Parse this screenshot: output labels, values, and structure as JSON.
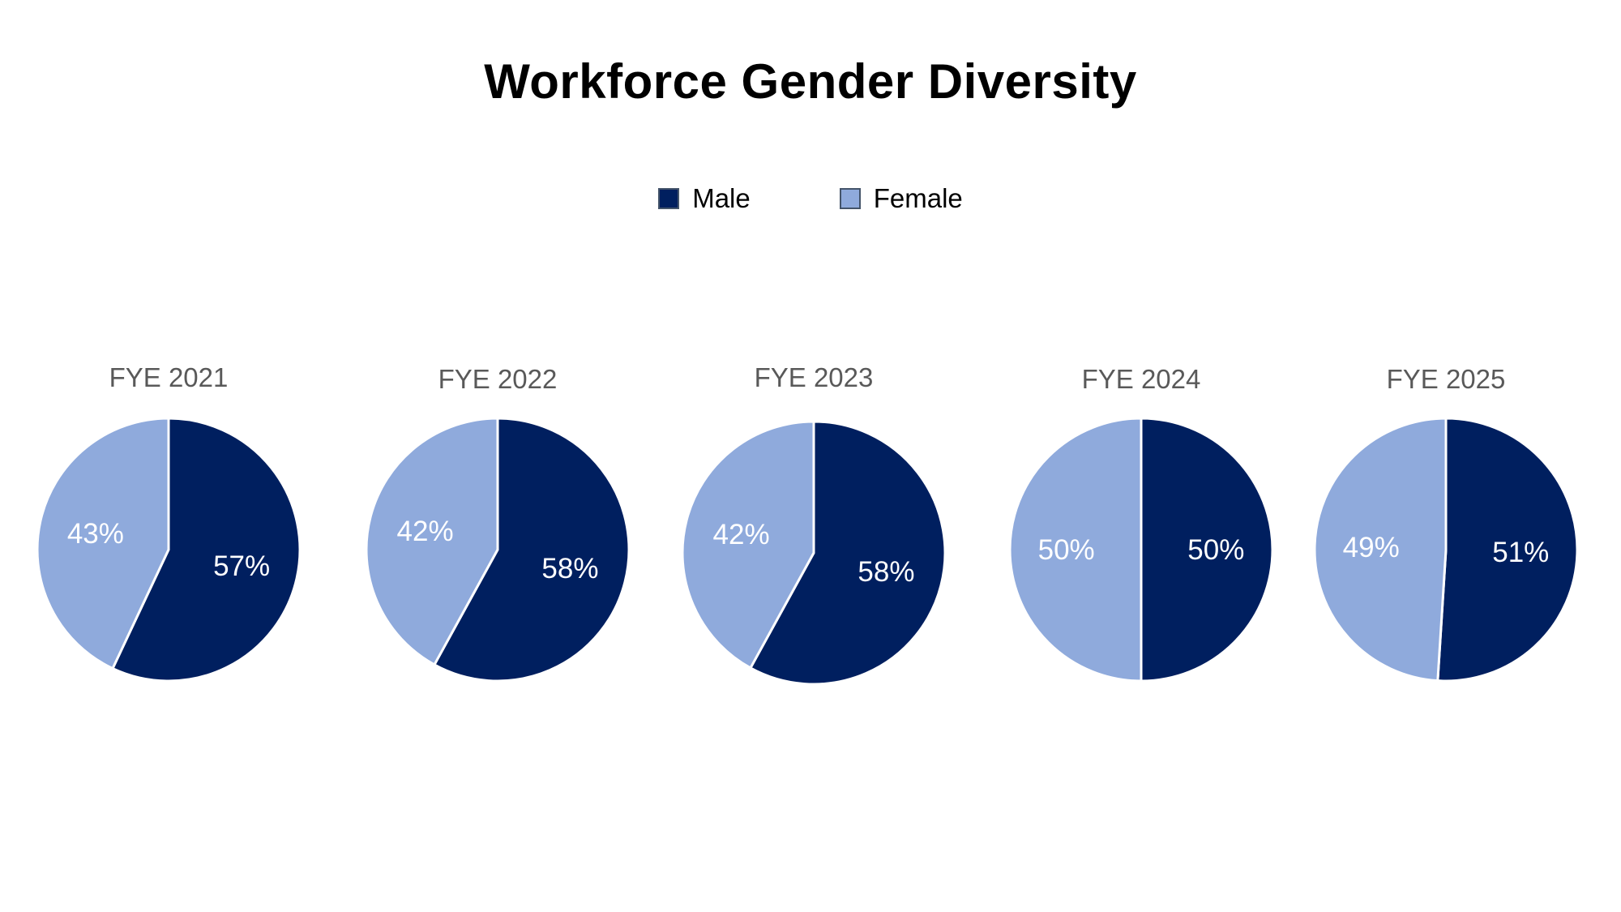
{
  "chart_data": {
    "type": "pie",
    "title": "Workforce Gender Diversity",
    "legend": {
      "placement": "top-center",
      "entries": [
        "Male",
        "Female"
      ]
    },
    "colors": {
      "Male": "#001f5f",
      "Female": "#8faadc"
    },
    "charts": [
      {
        "title": "FYE 2021",
        "slices": [
          {
            "label": "Male",
            "value": 57,
            "display": "57%"
          },
          {
            "label": "Female",
            "value": 43,
            "display": "43%"
          }
        ]
      },
      {
        "title": "FYE 2022",
        "slices": [
          {
            "label": "Male",
            "value": 58,
            "display": "58%"
          },
          {
            "label": "Female",
            "value": 42,
            "display": "42%"
          }
        ]
      },
      {
        "title": "FYE 2023",
        "slices": [
          {
            "label": "Male",
            "value": 58,
            "display": "58%"
          },
          {
            "label": "Female",
            "value": 42,
            "display": "42%"
          }
        ]
      },
      {
        "title": "FYE 2024",
        "slices": [
          {
            "label": "Male",
            "value": 50,
            "display": "50%"
          },
          {
            "label": "Female",
            "value": 50,
            "display": "50%"
          }
        ]
      },
      {
        "title": "FYE 2025",
        "slices": [
          {
            "label": "Male",
            "value": 51,
            "display": "51%"
          },
          {
            "label": "Female",
            "value": 49,
            "display": "49%"
          }
        ]
      }
    ]
  }
}
